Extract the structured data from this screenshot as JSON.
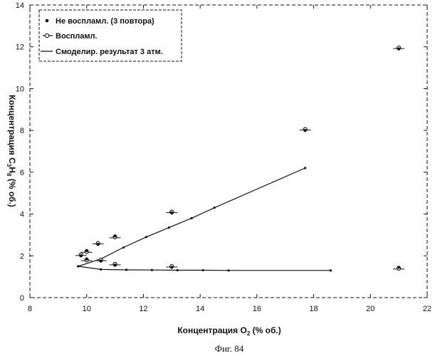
{
  "chart_data": {
    "type": "scatter",
    "xlabel": "Концентрация O",
    "xlabel_sub": "2",
    "xlabel_tail": " (% об.)",
    "ylabel": "Концентрация C",
    "ylabel_sub1": "3",
    "ylabel_mid": "H",
    "ylabel_sub2": "8",
    "ylabel_tail": " (% об.)",
    "xlim": [
      8,
      22
    ],
    "ylim": [
      0,
      14
    ],
    "xticks": [
      8,
      10,
      12,
      14,
      16,
      18,
      20,
      22
    ],
    "yticks": [
      0,
      2,
      4,
      6,
      8,
      10,
      12,
      14
    ],
    "grid": false,
    "legend_position": "top-left",
    "legend": [
      "Не воспламл. (3 повтора)",
      "Воспламл.",
      "Смоделир. результат 3 атм."
    ],
    "series": [
      {
        "name": "Не воспламл. (3 повтора)",
        "marker": "dot",
        "points": [
          [
            9.8,
            2.0
          ],
          [
            10.0,
            2.25
          ],
          [
            10.0,
            1.85
          ],
          [
            10.4,
            2.55
          ],
          [
            10.5,
            1.75
          ],
          [
            11.0,
            2.95
          ],
          [
            11.0,
            1.55
          ],
          [
            13.0,
            4.05
          ],
          [
            13.0,
            1.45
          ],
          [
            17.7,
            8.0
          ],
          [
            21.0,
            11.9
          ],
          [
            21.0,
            1.45
          ]
        ]
      },
      {
        "name": "Воспламл.",
        "marker": "open-circle",
        "points": [
          [
            9.8,
            2.05
          ],
          [
            10.0,
            2.2
          ],
          [
            10.0,
            1.8
          ],
          [
            10.4,
            2.6
          ],
          [
            10.5,
            1.8
          ],
          [
            11.0,
            2.9
          ],
          [
            11.0,
            1.6
          ],
          [
            13.0,
            4.1
          ],
          [
            13.0,
            1.5
          ],
          [
            17.7,
            8.05
          ],
          [
            21.0,
            11.95
          ],
          [
            21.0,
            1.4
          ]
        ]
      },
      {
        "name": "Смоделир. результат 3 атм.",
        "marker": "small-dot-line",
        "branches": [
          [
            [
              9.7,
              1.5
            ],
            [
              10.5,
              1.85
            ],
            [
              11.3,
              2.4
            ],
            [
              12.1,
              2.9
            ],
            [
              12.9,
              3.35
            ],
            [
              13.7,
              3.8
            ],
            [
              14.5,
              4.3
            ],
            [
              17.7,
              6.2
            ]
          ],
          [
            [
              9.7,
              1.5
            ],
            [
              10.5,
              1.35
            ],
            [
              11.4,
              1.33
            ],
            [
              12.3,
              1.32
            ],
            [
              13.2,
              1.31
            ],
            [
              14.1,
              1.31
            ],
            [
              15.0,
              1.3
            ],
            [
              18.6,
              1.3
            ]
          ]
        ]
      }
    ]
  },
  "caption": "Фиг. 84"
}
